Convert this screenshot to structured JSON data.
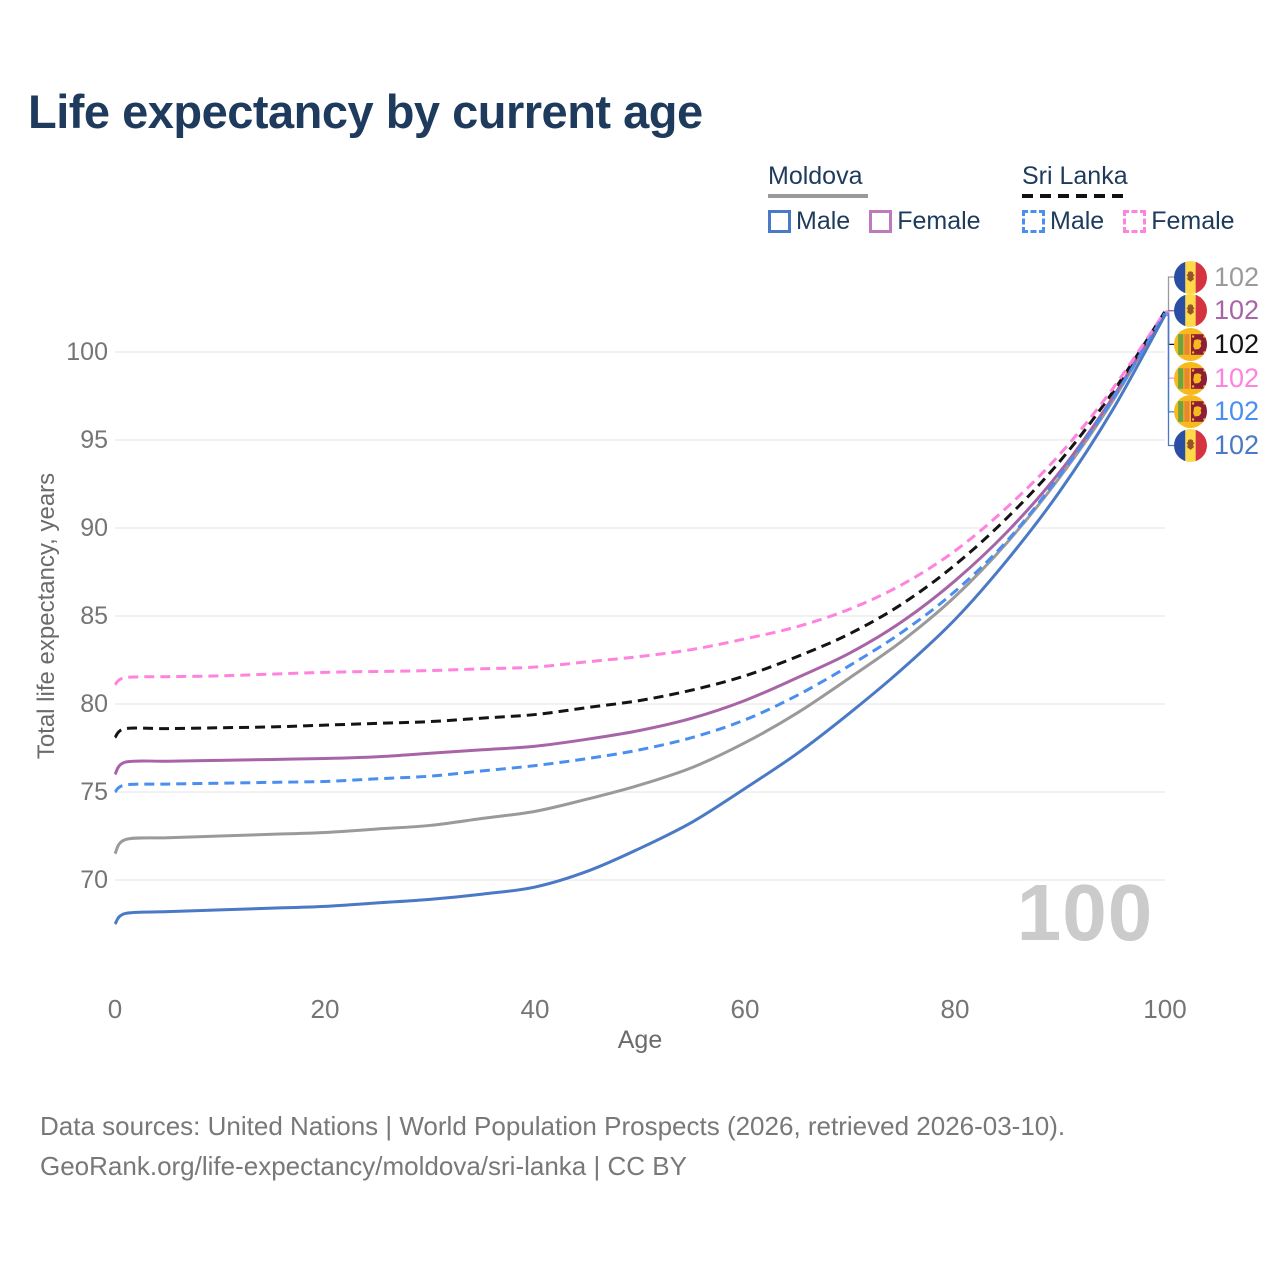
{
  "page": {
    "title": "Life expectancy by current age",
    "watermark": "100",
    "footer": {
      "line1": "Data sources: United Nations | World Population Prospects (2026, retrieved 2026-03-10).",
      "line2": "GeoRank.org/life-expectancy/moldova/sri-lanka | CC BY"
    }
  },
  "legend": {
    "groups": [
      {
        "title": "Moldova",
        "line_style": "solid",
        "underline_color": "#9a9a9a",
        "items": [
          {
            "label": "Male",
            "color": "#4a79c5"
          },
          {
            "label": "Female",
            "color": "#bd7abd"
          }
        ]
      },
      {
        "title": "Sri Lanka",
        "line_style": "dashed",
        "underline_color": "#111111",
        "items": [
          {
            "label": "Male",
            "color": "#4a8ef0"
          },
          {
            "label": "Female",
            "color": "#ff82df"
          }
        ]
      }
    ]
  },
  "chart_data": {
    "type": "line",
    "title": "Life expectancy by current age",
    "xlabel": "Age",
    "ylabel": "Total life expectancy, years",
    "x_ticks": [
      0,
      20,
      40,
      60,
      80,
      100
    ],
    "y_ticks": [
      70,
      75,
      80,
      85,
      90,
      95,
      100
    ],
    "xlim": [
      0,
      100
    ],
    "ylim": [
      66.5,
      103.5
    ],
    "grid": "horizontal",
    "legend_position": "top-right",
    "ages": [
      0,
      1,
      5,
      10,
      15,
      20,
      25,
      30,
      35,
      40,
      45,
      50,
      55,
      60,
      65,
      70,
      75,
      80,
      85,
      90,
      95,
      100
    ],
    "series": [
      {
        "name": "Moldova",
        "country": "MD",
        "group": "Both sexes",
        "color": "#9a9a9a",
        "dashed": false,
        "end_label": "102",
        "values": [
          71.5,
          72.3,
          72.4,
          72.5,
          72.6,
          72.7,
          72.9,
          73.1,
          73.5,
          73.9,
          74.6,
          75.4,
          76.4,
          77.8,
          79.5,
          81.5,
          83.6,
          86.1,
          89.2,
          92.9,
          97.2,
          102.3
        ]
      },
      {
        "name": "Moldova Female",
        "country": "MD",
        "group": "Female",
        "color": "#a765a7",
        "dashed": false,
        "end_label": "102",
        "values": [
          76.0,
          76.7,
          76.75,
          76.8,
          76.85,
          76.9,
          77.0,
          77.2,
          77.4,
          77.6,
          78.0,
          78.5,
          79.2,
          80.2,
          81.5,
          82.9,
          84.7,
          87.0,
          89.8,
          93.2,
          97.4,
          102.3
        ]
      },
      {
        "name": "Sri Lanka",
        "country": "LK",
        "group": "Both sexes",
        "color": "#141414",
        "dashed": true,
        "end_label": "102",
        "values": [
          78.1,
          78.6,
          78.6,
          78.65,
          78.7,
          78.8,
          78.9,
          79.0,
          79.2,
          79.4,
          79.8,
          80.2,
          80.8,
          81.6,
          82.7,
          84.0,
          85.7,
          87.9,
          90.6,
          93.8,
          97.7,
          102.3
        ]
      },
      {
        "name": "Sri Lanka Female",
        "country": "LK",
        "group": "Female",
        "color": "#ff82df",
        "dashed": true,
        "end_label": "102",
        "values": [
          81.1,
          81.5,
          81.55,
          81.6,
          81.7,
          81.8,
          81.85,
          81.9,
          82.0,
          82.1,
          82.4,
          82.7,
          83.1,
          83.7,
          84.4,
          85.4,
          86.8,
          88.7,
          91.2,
          94.2,
          97.9,
          102.3
        ]
      },
      {
        "name": "Sri Lanka Male",
        "country": "LK",
        "group": "Male",
        "color": "#4a8ef0",
        "dashed": true,
        "end_label": "102",
        "values": [
          75.0,
          75.4,
          75.45,
          75.5,
          75.55,
          75.6,
          75.75,
          75.9,
          76.2,
          76.5,
          76.9,
          77.4,
          78.1,
          79.1,
          80.5,
          82.2,
          84.1,
          86.4,
          89.3,
          93.0,
          97.3,
          102.2
        ]
      },
      {
        "name": "Moldova Male",
        "country": "MD",
        "group": "Male",
        "color": "#4a79c5",
        "dashed": false,
        "end_label": "102",
        "values": [
          67.5,
          68.1,
          68.2,
          68.3,
          68.4,
          68.5,
          68.7,
          68.9,
          69.2,
          69.6,
          70.5,
          71.8,
          73.3,
          75.2,
          77.2,
          79.5,
          82.0,
          84.8,
          88.2,
          92.1,
          96.7,
          102.1
        ]
      }
    ]
  }
}
